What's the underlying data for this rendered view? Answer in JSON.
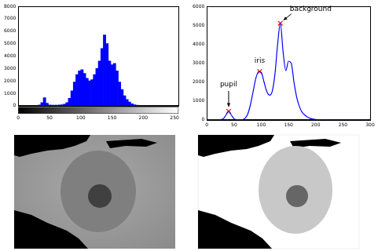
{
  "chart_data": [
    {
      "type": "histogram",
      "bins": [
        0,
        4,
        8,
        12,
        16,
        20,
        24,
        28,
        32,
        36,
        40,
        44,
        48,
        52,
        56,
        60,
        64,
        68,
        72,
        76,
        80,
        84,
        88,
        92,
        96,
        100,
        104,
        108,
        112,
        116,
        120,
        124,
        128,
        132,
        136,
        140,
        144,
        148,
        152,
        156,
        160,
        164,
        168,
        172,
        176,
        180,
        184,
        188,
        192,
        196,
        200,
        204,
        208,
        212,
        216,
        220,
        224,
        228,
        232,
        236,
        240,
        244,
        248,
        252,
        256
      ],
      "values": [
        0,
        0,
        0,
        0,
        0,
        0,
        0,
        20,
        60,
        250,
        650,
        200,
        60,
        40,
        40,
        50,
        60,
        80,
        120,
        250,
        600,
        1200,
        1900,
        2500,
        2800,
        2900,
        2600,
        2200,
        2000,
        2100,
        2500,
        3000,
        3600,
        4600,
        5700,
        5000,
        3600,
        3300,
        3400,
        2800,
        1900,
        1300,
        800,
        500,
        300,
        150,
        80,
        40,
        0,
        0,
        0,
        0,
        0,
        0,
        0,
        0,
        0,
        0,
        0,
        0,
        0,
        0,
        0,
        0
      ],
      "color": "#0000ff",
      "xlim": [
        0,
        256
      ],
      "xticks": [
        0,
        50,
        100,
        150,
        200,
        250
      ],
      "ylim": [
        0,
        8000
      ],
      "yticks": [
        0,
        1000,
        2000,
        3000,
        4000,
        5000,
        6000,
        7000,
        8000
      ],
      "grid": false
    },
    {
      "type": "line",
      "x": [
        0,
        5,
        10,
        15,
        20,
        25,
        30,
        35,
        40,
        45,
        50,
        55,
        60,
        65,
        70,
        75,
        80,
        85,
        90,
        95,
        100,
        105,
        110,
        115,
        120,
        125,
        130,
        135,
        140,
        145,
        150,
        155,
        160,
        165,
        170,
        175,
        180,
        185,
        190,
        195,
        200,
        205,
        210,
        215,
        220,
        225,
        230,
        235,
        240,
        245,
        250,
        255,
        260,
        265,
        270,
        275,
        280,
        285,
        290,
        295,
        300
      ],
      "values": [
        0,
        0,
        0,
        0,
        0,
        10,
        60,
        250,
        450,
        250,
        60,
        10,
        5,
        10,
        80,
        300,
        800,
        1500,
        2200,
        2550,
        2500,
        2000,
        1500,
        1300,
        1500,
        2400,
        4000,
        5100,
        3600,
        2600,
        3100,
        3000,
        2000,
        1200,
        700,
        400,
        250,
        150,
        80,
        40,
        20,
        10,
        0,
        0,
        0,
        0,
        0,
        0,
        0,
        0,
        0,
        0,
        0,
        0,
        0,
        0,
        0,
        0,
        0,
        0,
        0
      ],
      "color": "#0000ff",
      "xlim": [
        0,
        300
      ],
      "xticks": [
        0,
        50,
        100,
        150,
        200,
        250,
        300
      ],
      "ylim": [
        0,
        6000
      ],
      "yticks": [
        0,
        1000,
        2000,
        3000,
        4000,
        5000,
        6000
      ],
      "grid": false,
      "annotations": [
        {
          "text": "pupil",
          "x": 40,
          "y": 450,
          "color": "#ff0000",
          "marker": "x"
        },
        {
          "text": "iris",
          "x": 97,
          "y": 2550,
          "color": "#ff0000",
          "marker": "x"
        },
        {
          "text": "background",
          "x": 135,
          "y": 5100,
          "color": "#ff0000",
          "marker": "x"
        }
      ]
    }
  ]
}
